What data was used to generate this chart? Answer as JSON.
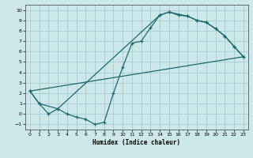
{
  "xlabel": "Humidex (Indice chaleur)",
  "xlim": [
    -0.5,
    23.5
  ],
  "ylim": [
    -1.5,
    10.5
  ],
  "xticks": [
    0,
    1,
    2,
    3,
    4,
    5,
    6,
    7,
    8,
    9,
    10,
    11,
    12,
    13,
    14,
    15,
    16,
    17,
    18,
    19,
    20,
    21,
    22,
    23
  ],
  "yticks": [
    -1,
    0,
    1,
    2,
    3,
    4,
    5,
    6,
    7,
    8,
    9,
    10
  ],
  "bg_color": "#cce8e8",
  "grid_color": "#aacccc",
  "line_color": "#1a6b6b",
  "curve1_x": [
    0,
    1,
    2,
    3,
    4,
    5,
    6,
    7,
    8,
    9,
    10,
    11,
    12,
    13,
    14,
    15,
    16,
    17,
    18,
    19,
    20,
    21,
    22,
    23
  ],
  "curve1_y": [
    2.2,
    1.0,
    0.0,
    0.5,
    0.0,
    -0.3,
    -0.5,
    -1.0,
    -0.8,
    2.0,
    4.5,
    6.8,
    7.0,
    8.3,
    9.5,
    9.8,
    9.5,
    9.4,
    9.0,
    8.8,
    8.2,
    7.5,
    6.5,
    5.5
  ],
  "curve2_x": [
    0,
    23
  ],
  "curve2_y": [
    2.2,
    5.5
  ],
  "curve3_x": [
    0,
    1,
    3,
    14,
    15,
    17,
    18,
    19,
    20,
    21,
    22,
    23
  ],
  "curve3_y": [
    2.2,
    1.0,
    0.5,
    9.5,
    9.8,
    9.4,
    9.0,
    8.8,
    8.2,
    7.5,
    6.5,
    5.5
  ]
}
